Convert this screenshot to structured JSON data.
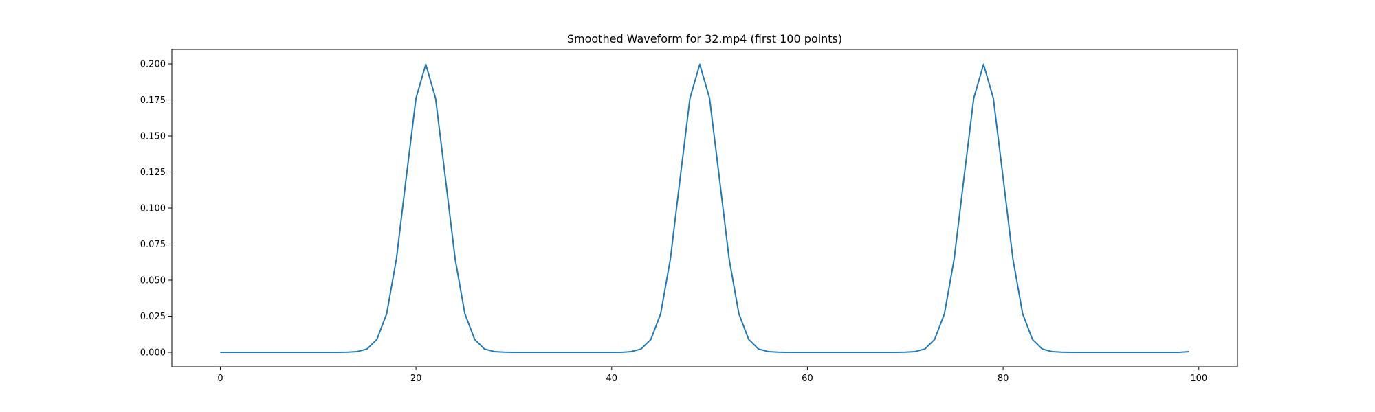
{
  "chart_data": {
    "type": "line",
    "title": "Smoothed Waveform for 32.mp4 (first 100 points)",
    "xlabel": "",
    "ylabel": "",
    "xlim": [
      -4.95,
      103.95
    ],
    "ylim": [
      -0.01,
      0.21
    ],
    "x_ticks": [
      0,
      20,
      40,
      60,
      80,
      100
    ],
    "x_tick_labels": [
      "0",
      "20",
      "40",
      "60",
      "80",
      "100"
    ],
    "y_ticks": [
      0.0,
      0.025,
      0.05,
      0.075,
      0.1,
      0.125,
      0.15,
      0.175,
      0.2
    ],
    "y_tick_labels": [
      "0.000",
      "0.025",
      "0.050",
      "0.075",
      "0.100",
      "0.125",
      "0.150",
      "0.175",
      "0.200"
    ],
    "grid": false,
    "colors": {
      "line": "#1f77b4",
      "axes": "#000000",
      "background": "#ffffff"
    },
    "series": [
      {
        "x": [
          0,
          1,
          2,
          3,
          4,
          5,
          6,
          7,
          8,
          9,
          10,
          11,
          12,
          13,
          14,
          15,
          16,
          17,
          18,
          19,
          20,
          21,
          22,
          23,
          24,
          25,
          26,
          27,
          28,
          29,
          30,
          31,
          32,
          33,
          34,
          35,
          36,
          37,
          38,
          39,
          40,
          41,
          42,
          43,
          44,
          45,
          46,
          47,
          48,
          49,
          50,
          51,
          52,
          53,
          54,
          55,
          56,
          57,
          58,
          59,
          60,
          61,
          62,
          63,
          64,
          65,
          66,
          67,
          68,
          69,
          70,
          71,
          72,
          73,
          74,
          75,
          76,
          77,
          78,
          79,
          80,
          81,
          82,
          83,
          84,
          85,
          86,
          87,
          88,
          89,
          90,
          91,
          92,
          93,
          94,
          95,
          96,
          97,
          98,
          99
        ],
        "values": [
          0,
          0,
          0,
          0,
          0,
          0,
          0,
          0,
          0,
          0,
          0,
          0,
          0,
          0.0001,
          0.0005,
          0.0023,
          0.0089,
          0.0266,
          0.0648,
          0.121,
          0.1762,
          0.1997,
          0.1762,
          0.121,
          0.0648,
          0.0266,
          0.0089,
          0.0023,
          0.0005,
          0.0001,
          0,
          0,
          0,
          0,
          0,
          0,
          0,
          0,
          0,
          0,
          0,
          0,
          0.0005,
          0.0023,
          0.0089,
          0.0266,
          0.0648,
          0.121,
          0.1762,
          0.1997,
          0.1762,
          0.121,
          0.0648,
          0.0266,
          0.0089,
          0.0023,
          0.0005,
          0.0001,
          0,
          0,
          0,
          0,
          0,
          0,
          0,
          0,
          0,
          0,
          0,
          0,
          0.0001,
          0.0005,
          0.0023,
          0.0089,
          0.0266,
          0.0648,
          0.121,
          0.1762,
          0.1997,
          0.1762,
          0.121,
          0.0648,
          0.0266,
          0.0089,
          0.0023,
          0.0005,
          0.0001,
          0,
          0,
          0,
          0,
          0,
          0,
          0,
          0,
          0,
          0,
          0,
          0,
          0.0005
        ]
      }
    ]
  }
}
